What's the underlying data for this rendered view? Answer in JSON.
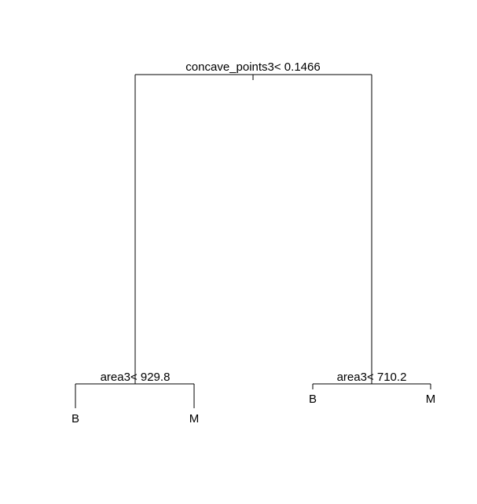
{
  "tree": {
    "root": {
      "split_label": "concave_points3< 0.1466"
    },
    "left_node": {
      "split_label": "area3< 929.8",
      "left_leaf": "B",
      "right_leaf": "M"
    },
    "right_node": {
      "split_label": "area3< 710.2",
      "left_leaf": "B",
      "right_leaf": "M"
    }
  },
  "colors": {
    "line": "#000000",
    "text": "#000000",
    "background": "#ffffff"
  }
}
